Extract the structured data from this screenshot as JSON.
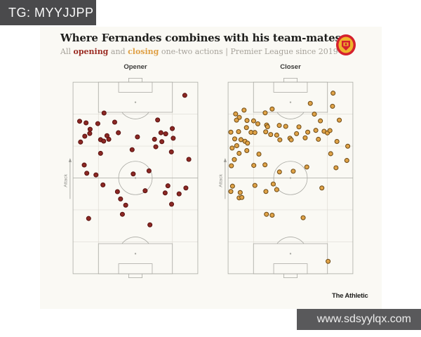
{
  "watermark_top": {
    "text": "TG: MYYJJPP"
  },
  "watermark_bottom": {
    "text": "www.sdsyylqx.com"
  },
  "header": {
    "title": "Where Fernandes combines with his team-mates",
    "subtitle": {
      "prefix": "All ",
      "opening_word": "opening",
      "and_word": " and ",
      "closing_word": "closing",
      "rest": " one-two actions | Premier League since 2019-20"
    },
    "club_badge": "manchester-united-crest"
  },
  "footer": {
    "brand": "The Athletic"
  },
  "colors": {
    "accent_opening": "#9b2c23",
    "accent_closing": "#dfa045",
    "card_bg": "#faf9f4",
    "pitch_line": "#a9a9a3",
    "pitch_grid": "#dedbd3",
    "opener_dot_fill": "#8c2824",
    "opener_dot_edge": "#5a1210",
    "closer_dot_fill": "#e0a348",
    "closer_dot_edge": "#6f4b15",
    "banner_bg": "#4a4a4c"
  },
  "chart_data": {
    "type": "scatter",
    "title": "Where Fernandes combines with his team-mates",
    "subtitle": "All opening and closing one-two actions | Premier League since 2019-20",
    "coordinate_system": {
      "x_range": [
        0,
        680
      ],
      "y_range": [
        0,
        1050
      ],
      "orientation": "vertical football pitch, attacking goal at top",
      "note": "coordinates are 1/10 metre on a 68m x 105m pitch"
    },
    "attack_label": "Attack",
    "grid": "light channel/zone grid (penalty-width verticals, sixth-length horizontals)",
    "legend_position": "none",
    "panels": [
      {
        "label": "Opener",
        "series": "opening one-two actions",
        "fill": "#8c2824",
        "edge": "#5a1210",
        "points": [
          [
            609,
            72
          ],
          [
            169,
            169
          ],
          [
            461,
            207
          ],
          [
            36,
            214
          ],
          [
            71,
            223
          ],
          [
            227,
            219
          ],
          [
            135,
            227
          ],
          [
            93,
            258
          ],
          [
            541,
            254
          ],
          [
            91,
            281
          ],
          [
            247,
            277
          ],
          [
            479,
            277
          ],
          [
            505,
            283
          ],
          [
            64,
            296
          ],
          [
            546,
            307
          ],
          [
            351,
            300
          ],
          [
            185,
            293
          ],
          [
            195,
            313
          ],
          [
            150,
            315
          ],
          [
            167,
            323
          ],
          [
            444,
            313
          ],
          [
            484,
            326
          ],
          [
            41,
            328
          ],
          [
            451,
            354
          ],
          [
            322,
            370
          ],
          [
            536,
            382
          ],
          [
            631,
            423
          ],
          [
            150,
            390
          ],
          [
            61,
            454
          ],
          [
            75,
            499
          ],
          [
            125,
            508
          ],
          [
            328,
            503
          ],
          [
            414,
            486
          ],
          [
            163,
            563
          ],
          [
            242,
            600
          ],
          [
            393,
            595
          ],
          [
            517,
            568
          ],
          [
            615,
            580
          ],
          [
            502,
            607
          ],
          [
            578,
            612
          ],
          [
            259,
            640
          ],
          [
            287,
            674
          ],
          [
            537,
            669
          ],
          [
            269,
            724
          ],
          [
            85,
            747
          ],
          [
            419,
            782
          ]
        ]
      },
      {
        "label": "Closer",
        "series": "closing one-two actions",
        "fill": "#e0a348",
        "edge": "#6f4b15",
        "points": [
          [
            572,
            60
          ],
          [
            448,
            116
          ],
          [
            569,
            132
          ],
          [
            240,
            147
          ],
          [
            202,
            168
          ],
          [
            87,
            153
          ],
          [
            41,
            174
          ],
          [
            470,
            175
          ],
          [
            61,
            193
          ],
          [
            46,
            208
          ],
          [
            103,
            210
          ],
          [
            606,
            208
          ],
          [
            139,
            212
          ],
          [
            503,
            212
          ],
          [
            162,
            228
          ],
          [
            210,
            235
          ],
          [
            215,
            244
          ],
          [
            279,
            237
          ],
          [
            314,
            242
          ],
          [
            100,
            249
          ],
          [
            386,
            245
          ],
          [
            205,
            272
          ],
          [
            15,
            274
          ],
          [
            57,
            271
          ],
          [
            125,
            275
          ],
          [
            146,
            276
          ],
          [
            232,
            287
          ],
          [
            265,
            290
          ],
          [
            373,
            282
          ],
          [
            434,
            274
          ],
          [
            478,
            264
          ],
          [
            523,
            269
          ],
          [
            541,
            278
          ],
          [
            555,
            265
          ],
          [
            36,
            311
          ],
          [
            70,
            315
          ],
          [
            92,
            324
          ],
          [
            47,
            348
          ],
          [
            22,
            361
          ],
          [
            106,
            334
          ],
          [
            282,
            316
          ],
          [
            337,
            307
          ],
          [
            344,
            316
          ],
          [
            420,
            305
          ],
          [
            492,
            313
          ],
          [
            593,
            325
          ],
          [
            652,
            351
          ],
          [
            60,
            390
          ],
          [
            102,
            375
          ],
          [
            168,
            394
          ],
          [
            559,
            392
          ],
          [
            34,
            424
          ],
          [
            18,
            458
          ],
          [
            140,
            456
          ],
          [
            201,
            453
          ],
          [
            280,
            492
          ],
          [
            355,
            488
          ],
          [
            429,
            465
          ],
          [
            647,
            429
          ],
          [
            588,
            469
          ],
          [
            146,
            566
          ],
          [
            24,
            570
          ],
          [
            15,
            599
          ],
          [
            66,
            605
          ],
          [
            246,
            558
          ],
          [
            265,
            589
          ],
          [
            206,
            599
          ],
          [
            60,
            634
          ],
          [
            75,
            632
          ],
          [
            511,
            580
          ],
          [
            209,
            724
          ],
          [
            240,
            729
          ],
          [
            409,
            743
          ],
          [
            545,
            982
          ]
        ]
      }
    ]
  }
}
